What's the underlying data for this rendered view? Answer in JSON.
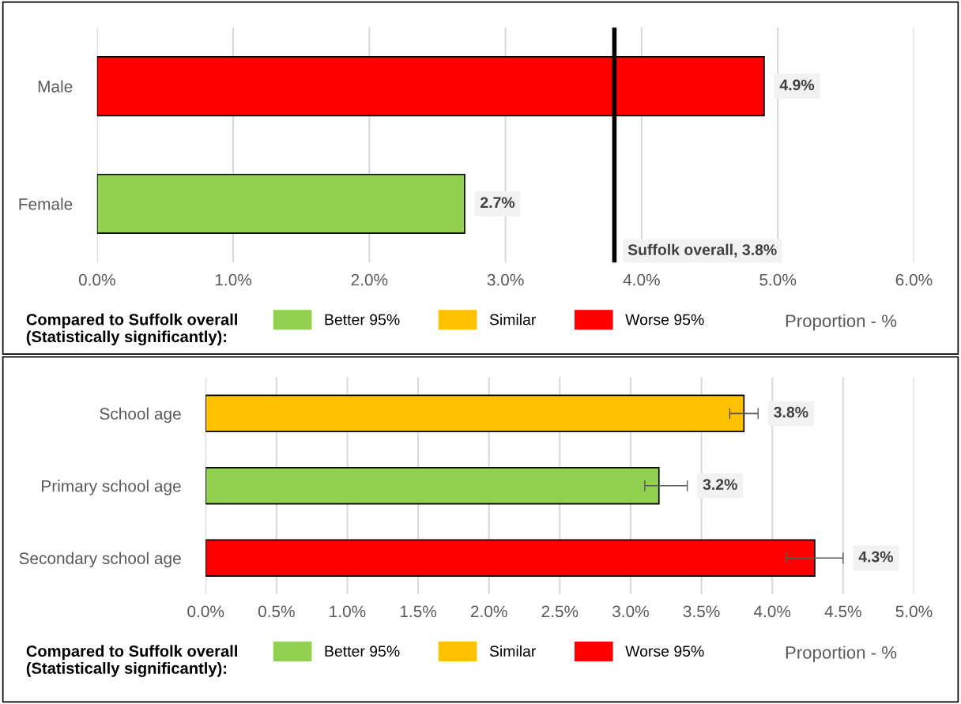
{
  "chart_data": [
    {
      "type": "bar",
      "orientation": "horizontal",
      "stacked": true,
      "categories": [
        "Male",
        "Female"
      ],
      "series": [
        {
          "name": "Better 95%",
          "color": "#92d050",
          "values": [
            null,
            2.7
          ],
          "value_labels": [
            null,
            "2.7%"
          ]
        },
        {
          "name": "Similar",
          "color": "#ffc000",
          "values": [
            null,
            null
          ]
        },
        {
          "name": "Worse 95%",
          "color": "#ff0000",
          "values": [
            4.9,
            null
          ],
          "value_labels": [
            "4.9%",
            null
          ]
        }
      ],
      "xlim": [
        0,
        6
      ],
      "xticks": [
        {
          "value": 0,
          "label": "0.0%"
        },
        {
          "value": 1,
          "label": "1.0%"
        },
        {
          "value": 2,
          "label": "2.0%"
        },
        {
          "value": 3,
          "label": "3.0%"
        },
        {
          "value": 4,
          "label": "4.0%"
        },
        {
          "value": 5,
          "label": "5.0%"
        },
        {
          "value": 6,
          "label": "6.0%"
        }
      ],
      "grid": "x",
      "xlabel": "Proportion - %",
      "legend": "bottom",
      "legend_title": "Compared to Suffolk overall\n(Statistically significantly):",
      "ref_lines": [
        {
          "axis": "x",
          "value": 3.8,
          "label": "Suffolk overall, 3.8%",
          "color": "#000000"
        }
      ]
    },
    {
      "type": "bar",
      "orientation": "horizontal",
      "stacked": true,
      "categories": [
        "School age",
        "Primary school age",
        "Secondary school age"
      ],
      "series": [
        {
          "name": "Better 95%",
          "color": "#92d050",
          "values": [
            null,
            3.2,
            null
          ],
          "errors": [
            null,
            [
              3.1,
              3.4
            ],
            null
          ],
          "value_labels": [
            null,
            "3.2%",
            null
          ]
        },
        {
          "name": "Similar",
          "color": "#ffc000",
          "values": [
            3.8,
            null,
            null
          ],
          "errors": [
            [
              3.7,
              3.9
            ],
            null,
            null
          ],
          "value_labels": [
            "3.8%",
            null,
            null
          ]
        },
        {
          "name": "Worse 95%",
          "color": "#ff0000",
          "values": [
            null,
            null,
            4.3
          ],
          "errors": [
            null,
            null,
            [
              4.1,
              4.5
            ]
          ],
          "value_labels": [
            null,
            null,
            "4.3%"
          ]
        }
      ],
      "xlim": [
        0,
        5
      ],
      "xticks": [
        {
          "value": 0,
          "label": "0.0%"
        },
        {
          "value": 0.5,
          "label": "0.5%"
        },
        {
          "value": 1,
          "label": "1.0%"
        },
        {
          "value": 1.5,
          "label": "1.5%"
        },
        {
          "value": 2,
          "label": "2.0%"
        },
        {
          "value": 2.5,
          "label": "2.5%"
        },
        {
          "value": 3,
          "label": "3.0%"
        },
        {
          "value": 3.5,
          "label": "3.5%"
        },
        {
          "value": 4,
          "label": "4.0%"
        },
        {
          "value": 4.5,
          "label": "4.5%"
        },
        {
          "value": 5,
          "label": "5.0%"
        }
      ],
      "grid": "x",
      "xlabel": "Proportion - %",
      "legend": "bottom",
      "legend_title": "Compared to Suffolk overall\n(Statistically significantly):"
    }
  ]
}
